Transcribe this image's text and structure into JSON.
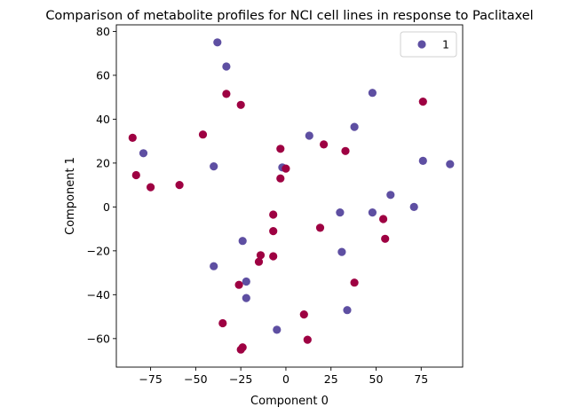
{
  "chart_data": {
    "type": "scatter",
    "title": "Comparison of metabolite profiles for NCI cell lines in response to Paclitaxel",
    "xlabel": "Component 0",
    "ylabel": "Component 1",
    "xlim": [
      -94,
      98
    ],
    "ylim": [
      -73,
      83
    ],
    "xticks": [
      -75,
      -50,
      -25,
      0,
      25,
      50,
      75
    ],
    "yticks": [
      -60,
      -40,
      -20,
      0,
      20,
      40,
      60,
      80
    ],
    "xtick_labels": [
      "−75",
      "−50",
      "−25",
      "0",
      "25",
      "50",
      "75"
    ],
    "ytick_labels": [
      "−60",
      "−40",
      "−20",
      "0",
      "20",
      "40",
      "60",
      "80"
    ],
    "grid": false,
    "legend": {
      "placement": "top-right",
      "entries": [
        {
          "label": "1",
          "color": "#5e4fa2"
        }
      ]
    },
    "series": [
      {
        "name": "1",
        "color": "#5e4fa2",
        "points": [
          [
            -38,
            75
          ],
          [
            -33,
            64
          ],
          [
            -79,
            24.5
          ],
          [
            -40,
            18.5
          ],
          [
            -24,
            -15.5
          ],
          [
            -40,
            -27
          ],
          [
            -22,
            -34
          ],
          [
            -22,
            -41.5
          ],
          [
            -5,
            -56
          ],
          [
            -2,
            18
          ],
          [
            13,
            32.5
          ],
          [
            38,
            36.5
          ],
          [
            48,
            52
          ],
          [
            76,
            21
          ],
          [
            91,
            19.5
          ],
          [
            58,
            5.5
          ],
          [
            71,
            0
          ],
          [
            30,
            -2.5
          ],
          [
            48,
            -2.5
          ],
          [
            31,
            -20.5
          ],
          [
            34,
            -47
          ]
        ]
      },
      {
        "name": "",
        "color": "#9e0142",
        "points": [
          [
            -33,
            51.5
          ],
          [
            -25,
            46.5
          ],
          [
            -85,
            31.5
          ],
          [
            -83,
            14.5
          ],
          [
            -75,
            9
          ],
          [
            -59,
            10
          ],
          [
            -46,
            33
          ],
          [
            -3,
            26.5
          ],
          [
            0,
            17.5
          ],
          [
            -3,
            13
          ],
          [
            21,
            28.5
          ],
          [
            33,
            25.5
          ],
          [
            76,
            48
          ],
          [
            -7,
            -3.5
          ],
          [
            -7,
            -11
          ],
          [
            54,
            -5.5
          ],
          [
            55,
            -14.5
          ],
          [
            19,
            -9.5
          ],
          [
            -14,
            -22
          ],
          [
            -15,
            -25
          ],
          [
            -7,
            -22.5
          ],
          [
            -26,
            -35.5
          ],
          [
            38,
            -34.5
          ],
          [
            -35,
            -53
          ],
          [
            10,
            -49
          ],
          [
            12,
            -60.5
          ],
          [
            -24,
            -64
          ],
          [
            -25,
            -65
          ]
        ]
      }
    ]
  }
}
